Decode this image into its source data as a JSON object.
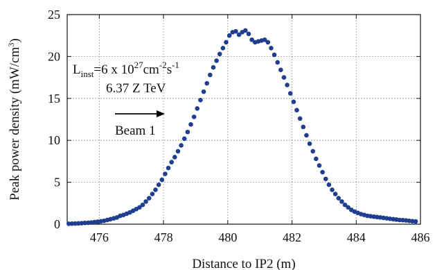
{
  "chart_data": {
    "type": "scatter",
    "xlabel": "Distance to IP2 (m)",
    "ylabel_main": "Peak power density (mW/cm",
    "ylabel_sup": "3",
    "ylabel_close": ")",
    "xlim": [
      475,
      486
    ],
    "ylim": [
      0,
      25
    ],
    "xticks": [
      476,
      478,
      480,
      482,
      484,
      486
    ],
    "yticks": [
      0,
      5,
      10,
      15,
      20,
      25
    ],
    "grid": true,
    "marker_color": "#1f3e8e",
    "annotations": {
      "lum_L": "L",
      "lum_sub": "inst",
      "lum_eq": "=6 x 10",
      "lum_exp1": "27",
      "lum_cm": "cm",
      "lum_exp2": "-2",
      "lum_s": "s",
      "lum_exp3": "-1",
      "energy": "6.37 Z TeV",
      "beam": "Beam 1"
    },
    "x": [
      475.05,
      475.15,
      475.25,
      475.35,
      475.45,
      475.55,
      475.65,
      475.75,
      475.85,
      475.95,
      476.05,
      476.15,
      476.25,
      476.35,
      476.45,
      476.55,
      476.65,
      476.75,
      476.85,
      476.95,
      477.05,
      477.15,
      477.25,
      477.35,
      477.45,
      477.55,
      477.65,
      477.75,
      477.85,
      477.95,
      478.05,
      478.15,
      478.25,
      478.35,
      478.45,
      478.55,
      478.65,
      478.75,
      478.85,
      478.95,
      479.05,
      479.15,
      479.25,
      479.35,
      479.45,
      479.55,
      479.65,
      479.75,
      479.85,
      479.95,
      480.05,
      480.15,
      480.25,
      480.35,
      480.45,
      480.55,
      480.65,
      480.75,
      480.85,
      480.95,
      481.05,
      481.15,
      481.25,
      481.35,
      481.45,
      481.55,
      481.65,
      481.75,
      481.85,
      481.95,
      482.05,
      482.15,
      482.25,
      482.35,
      482.45,
      482.55,
      482.65,
      482.75,
      482.85,
      482.95,
      483.05,
      483.15,
      483.25,
      483.35,
      483.45,
      483.55,
      483.65,
      483.75,
      483.85,
      483.95,
      484.05,
      484.15,
      484.25,
      484.35,
      484.45,
      484.55,
      484.65,
      484.75,
      484.85,
      484.95,
      485.05,
      485.15,
      485.25,
      485.35,
      485.45,
      485.55,
      485.65,
      485.75,
      485.85
    ],
    "y": [
      0.05,
      0.07,
      0.08,
      0.1,
      0.12,
      0.15,
      0.17,
      0.2,
      0.25,
      0.3,
      0.35,
      0.4,
      0.5,
      0.6,
      0.7,
      0.8,
      1.0,
      1.1,
      1.25,
      1.4,
      1.6,
      1.8,
      2.0,
      2.3,
      2.7,
      3.1,
      3.6,
      4.1,
      4.7,
      5.3,
      6.0,
      6.7,
      7.4,
      8.0,
      8.7,
      9.4,
      10.2,
      11.0,
      11.9,
      12.8,
      13.8,
      14.8,
      15.8,
      16.8,
      17.8,
      18.7,
      19.5,
      20.3,
      21.0,
      21.7,
      22.5,
      22.9,
      23.0,
      22.6,
      22.9,
      23.1,
      22.7,
      22.0,
      21.7,
      21.8,
      21.9,
      22.0,
      21.7,
      21.0,
      20.2,
      19.3,
      18.4,
      17.5,
      16.6,
      15.6,
      14.6,
      13.6,
      12.6,
      11.6,
      10.6,
      9.6,
      8.7,
      7.8,
      7.0,
      6.2,
      5.4,
      4.7,
      4.1,
      3.6,
      3.1,
      2.7,
      2.3,
      2.0,
      1.7,
      1.5,
      1.35,
      1.2,
      1.1,
      1.0,
      0.95,
      0.9,
      0.85,
      0.8,
      0.75,
      0.7,
      0.65,
      0.6,
      0.55,
      0.5,
      0.48,
      0.45,
      0.4,
      0.36,
      0.33
    ]
  }
}
